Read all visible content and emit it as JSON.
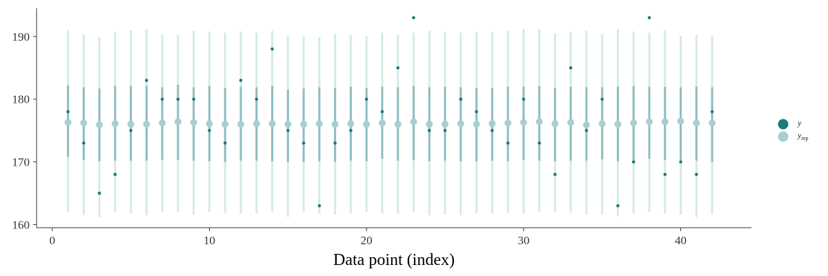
{
  "chart_data": {
    "type": "ppc_intervals",
    "title": "",
    "xlabel": "Data point (index)",
    "ylabel": "",
    "xlim": [
      -1,
      44.5
    ],
    "ylim": [
      159.5,
      194.5
    ],
    "xticks": [
      0,
      10,
      20,
      30,
      40
    ],
    "yticks": [
      160,
      170,
      180,
      190
    ],
    "grid": false,
    "legend_position": "right",
    "legend": [
      {
        "key": "y",
        "label": "y",
        "sub": "",
        "color": "#1b7a7a"
      },
      {
        "key": "yrep",
        "label": "y",
        "sub": "rep",
        "color": "#a8cfcf"
      }
    ],
    "colors": {
      "outer_interval": "#d6e9e9",
      "inner_interval": "#8dbdbd",
      "yrep_point": "#a8cfcf",
      "y_point": "#1b7a7a"
    },
    "x": [
      1,
      2,
      3,
      4,
      5,
      6,
      7,
      8,
      9,
      10,
      11,
      12,
      13,
      14,
      15,
      16,
      17,
      18,
      19,
      20,
      21,
      22,
      23,
      24,
      25,
      26,
      27,
      28,
      29,
      30,
      31,
      32,
      33,
      34,
      35,
      36,
      37,
      38,
      39,
      40,
      41,
      42
    ],
    "y": [
      178,
      173,
      165,
      168,
      175,
      183,
      180,
      180,
      180,
      175,
      173,
      183,
      180,
      188,
      175,
      173,
      163,
      173,
      175,
      180,
      178,
      185,
      193,
      175,
      175,
      180,
      178,
      175,
      173,
      180,
      173,
      168,
      185,
      175,
      180,
      163,
      170,
      193,
      168,
      170,
      168,
      178
    ],
    "yrep_median": [
      176.3,
      176.2,
      175.9,
      176.1,
      176.0,
      176.0,
      176.2,
      176.4,
      176.3,
      176.1,
      176.0,
      176.0,
      176.1,
      176.1,
      176.0,
      176.0,
      176.1,
      176.0,
      176.1,
      176.0,
      176.2,
      176.0,
      176.4,
      176.0,
      176.0,
      176.1,
      176.0,
      176.1,
      176.2,
      176.3,
      176.4,
      176.1,
      176.3,
      175.9,
      176.1,
      176.0,
      176.2,
      176.4,
      176.4,
      176.5,
      176.2,
      176.2
    ],
    "inner_low": [
      170.8,
      170.3,
      170.1,
      170.2,
      170.2,
      170.2,
      170.3,
      170.3,
      170.2,
      170.1,
      170.0,
      170.2,
      170.2,
      170.1,
      170.0,
      170.0,
      170.1,
      170.0,
      170.2,
      170.1,
      170.5,
      170.2,
      170.3,
      170.1,
      170.2,
      170.1,
      170.1,
      170.2,
      170.1,
      170.3,
      170.2,
      170.1,
      170.2,
      170.2,
      170.4,
      170.1,
      170.3,
      170.5,
      170.3,
      170.3,
      170.2,
      170.0
    ],
    "inner_high": [
      182.2,
      181.9,
      181.7,
      182.1,
      182.1,
      182.1,
      181.9,
      182.3,
      181.9,
      182.1,
      181.8,
      182.0,
      181.9,
      182.1,
      181.5,
      181.7,
      181.9,
      181.8,
      182.0,
      181.8,
      182.0,
      181.9,
      182.1,
      181.9,
      182.0,
      181.9,
      181.8,
      181.8,
      182.0,
      182.0,
      182.1,
      181.8,
      182.0,
      181.9,
      181.9,
      182.0,
      182.1,
      182.0,
      182.0,
      181.9,
      182.0,
      181.9
    ],
    "outer_low": [
      162.0,
      161.5,
      161.2,
      162.0,
      161.8,
      161.5,
      162.0,
      162.0,
      161.6,
      162.0,
      161.9,
      161.8,
      161.8,
      162.0,
      161.2,
      162.0,
      161.8,
      161.6,
      161.8,
      162.0,
      161.8,
      161.7,
      162.0,
      161.5,
      161.6,
      161.5,
      161.8,
      161.8,
      161.9,
      161.7,
      162.0,
      162.0,
      161.9,
      161.6,
      161.6,
      161.3,
      161.7,
      162.0,
      161.8,
      161.6,
      161.2,
      161.6
    ],
    "outer_high": [
      191.0,
      190.3,
      189.9,
      190.7,
      191.0,
      191.2,
      190.4,
      190.2,
      190.9,
      190.8,
      190.6,
      190.8,
      190.6,
      190.9,
      190.1,
      190.1,
      189.9,
      190.4,
      190.2,
      190.1,
      190.6,
      190.2,
      190.6,
      190.9,
      190.7,
      190.6,
      190.8,
      190.8,
      190.9,
      191.2,
      191.2,
      190.5,
      190.7,
      190.9,
      190.4,
      191.1,
      190.8,
      190.6,
      191.0,
      190.1,
      190.3,
      190.2
    ]
  }
}
